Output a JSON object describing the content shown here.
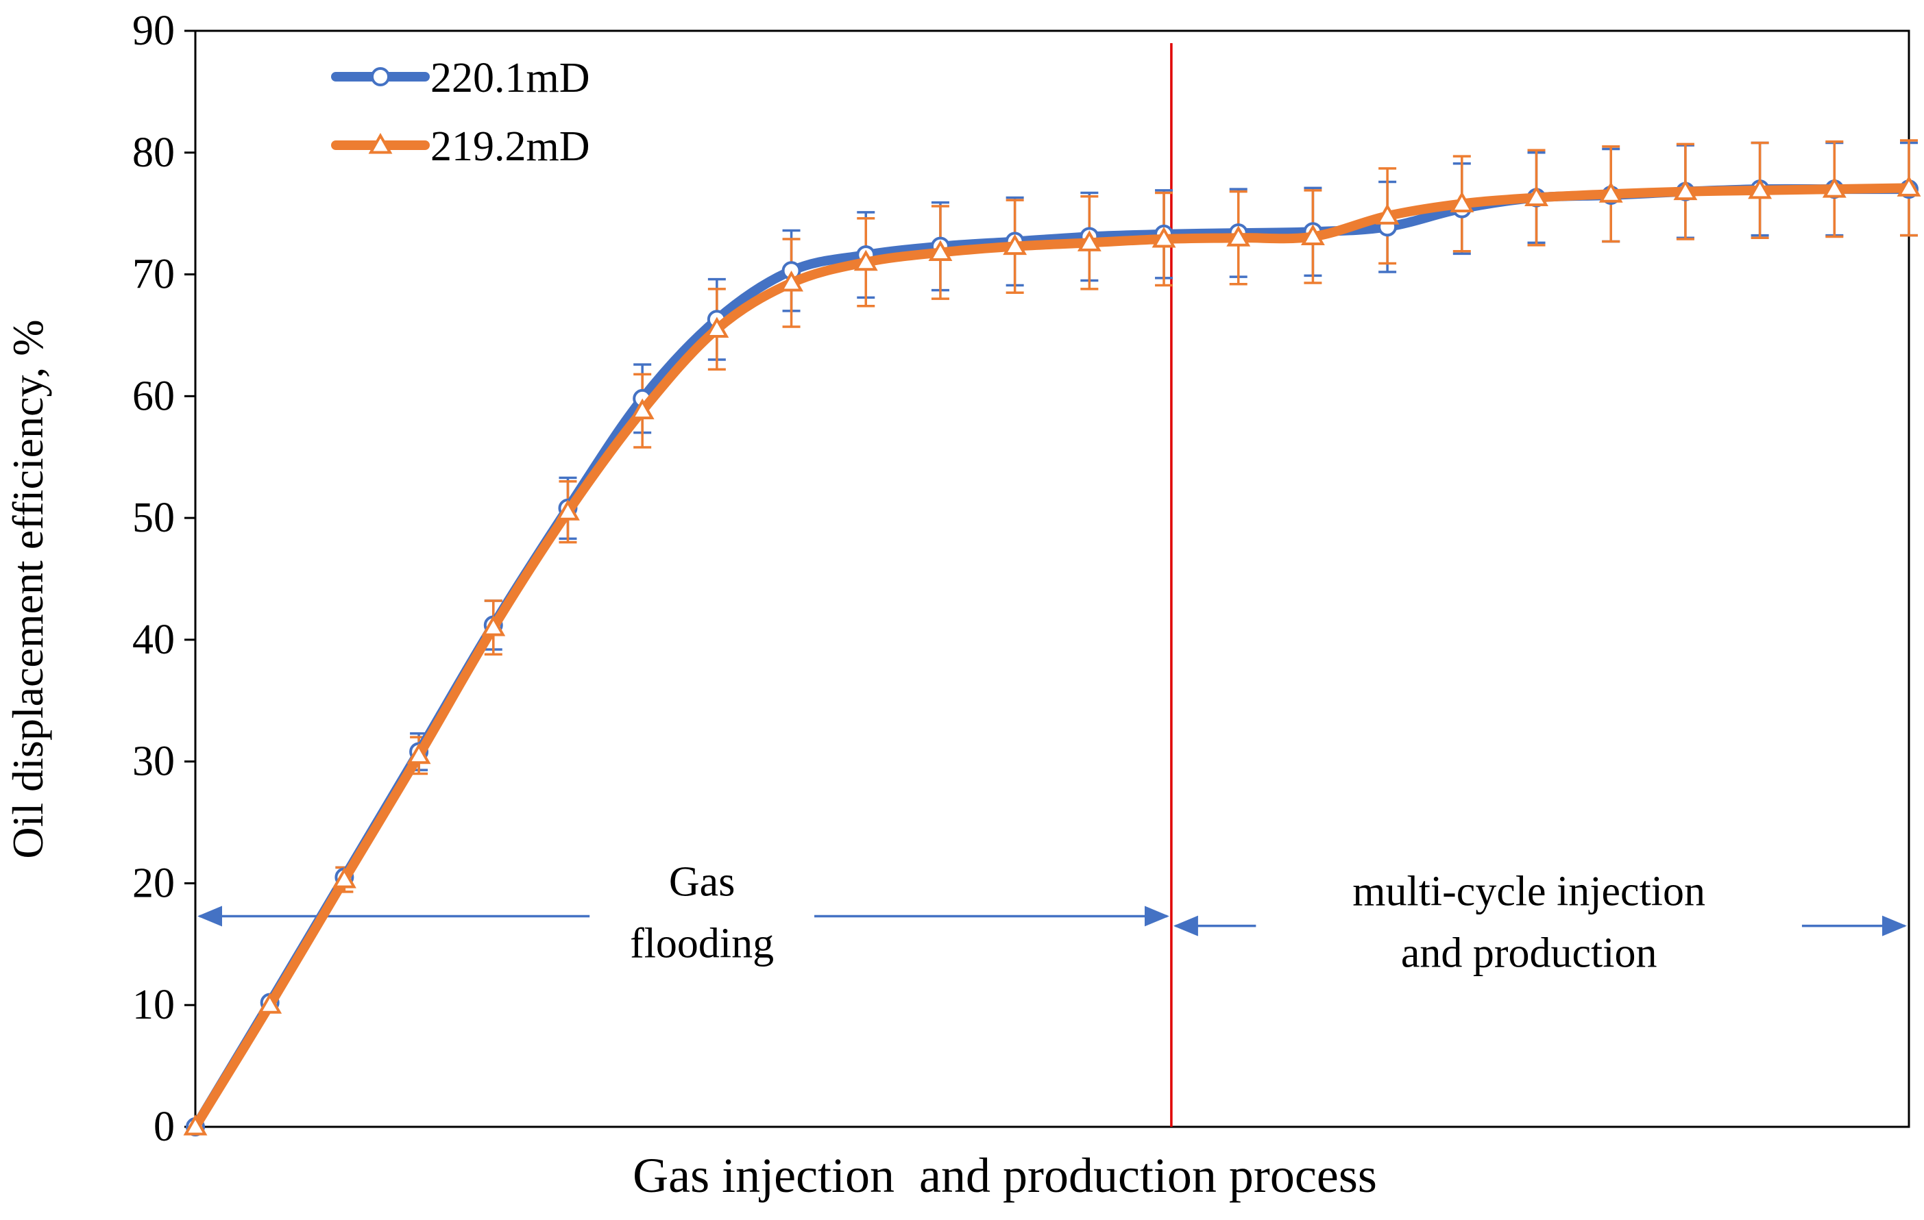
{
  "chart_data": {
    "type": "line",
    "title": "",
    "xlabel": "Gas injection  and production process",
    "ylabel": "Oil displacement efficiency, %",
    "ylim": [
      0,
      90
    ],
    "yticks": [
      0,
      10,
      20,
      30,
      40,
      50,
      60,
      70,
      80,
      90
    ],
    "xlim": [
      0,
      23
    ],
    "grid": false,
    "legend": "top-left",
    "x": [
      0,
      1,
      2,
      3,
      4,
      5,
      6,
      7,
      8,
      9,
      10,
      11,
      12,
      13,
      14,
      15,
      16,
      17,
      18,
      19,
      20,
      21,
      22,
      23
    ],
    "series": [
      {
        "name": "220.1mD",
        "color": "#4472C4",
        "marker": "circle",
        "values": [
          0,
          10.2,
          20.5,
          30.8,
          41.2,
          50.8,
          59.8,
          66.3,
          70.3,
          71.6,
          72.3,
          72.7,
          73.1,
          73.3,
          73.4,
          73.5,
          73.9,
          75.4,
          76.3,
          76.5,
          76.8,
          77.0,
          77.0,
          77.0
        ],
        "err": [
          0,
          0,
          0.8,
          1.5,
          2.0,
          2.5,
          2.8,
          3.3,
          3.3,
          3.5,
          3.6,
          3.6,
          3.6,
          3.6,
          3.6,
          3.6,
          3.7,
          3.7,
          3.7,
          3.8,
          3.8,
          3.8,
          3.8,
          3.8
        ]
      },
      {
        "name": "219.2mD",
        "color": "#ED7D31",
        "marker": "triangle",
        "values": [
          0,
          10.0,
          20.3,
          30.5,
          41.0,
          50.5,
          58.8,
          65.5,
          69.3,
          71.0,
          71.8,
          72.3,
          72.6,
          72.9,
          73.0,
          73.1,
          74.8,
          75.8,
          76.3,
          76.6,
          76.8,
          76.9,
          77.0,
          77.1
        ],
        "err": [
          0,
          0,
          1.0,
          1.5,
          2.2,
          2.5,
          3.0,
          3.3,
          3.6,
          3.6,
          3.8,
          3.8,
          3.8,
          3.8,
          3.8,
          3.8,
          3.9,
          3.9,
          3.9,
          3.9,
          3.9,
          3.9,
          3.9,
          3.9
        ]
      }
    ],
    "divider": {
      "x": 13.1,
      "color": "#E00000"
    },
    "annotations": [
      {
        "id": "gas-flooding",
        "lines": [
          "Gas",
          "flooding"
        ],
        "x_from": 0,
        "x_to": 13.1,
        "arrow_y": 17.3,
        "label_x": 6.8
      },
      {
        "id": "multi-cycle",
        "lines": [
          "multi-cycle  injection",
          "and production"
        ],
        "x_from": 13.1,
        "x_to": 23,
        "arrow_y": 16.5,
        "label_x": 17.9
      }
    ],
    "annotation_color": "#4472C4"
  }
}
